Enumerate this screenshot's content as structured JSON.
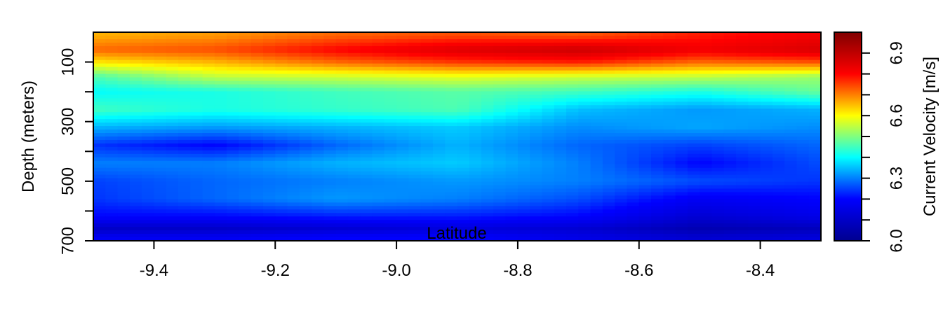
{
  "chart_data": {
    "type": "heatmap",
    "title": "",
    "xlabel": "Latitude",
    "ylabel": "Depth (meters)",
    "colorbar_label": "Current Velocity [m/s]",
    "x_ticks": [
      "-9.4",
      "-9.2",
      "-9.0",
      "-8.8",
      "-8.6",
      "-8.4"
    ],
    "x_tick_values": [
      -9.4,
      -9.2,
      -9.0,
      -8.8,
      -8.6,
      -8.4
    ],
    "xlim": [
      -9.5,
      -8.3
    ],
    "y_ticks": [
      "100",
      "300",
      "500",
      "700"
    ],
    "y_tick_values": [
      100,
      300,
      500,
      700
    ],
    "y_minor_tick_values": [
      200,
      400,
      600
    ],
    "ylim": [
      700,
      0
    ],
    "colorbar_ticks": [
      "6.0",
      "6.3",
      "6.6",
      "6.9"
    ],
    "colorbar_tick_values": [
      6.0,
      6.3,
      6.6,
      6.9
    ],
    "colorbar_minor_tick_values": [
      6.1,
      6.2,
      6.4,
      6.5,
      6.7,
      6.8
    ],
    "zlim": [
      6.0,
      7.0
    ],
    "colormap": [
      "#00008f",
      "#0000ff",
      "#00ffff",
      "#ffff00",
      "#ff0000",
      "#800000"
    ],
    "depths": [
      10,
      60,
      100,
      150,
      200,
      260,
      320,
      380,
      440,
      500,
      560,
      620,
      660,
      690
    ],
    "latitudes": [
      -9.5,
      -9.3,
      -9.1,
      -8.9,
      -8.7,
      -8.5,
      -8.3
    ],
    "values": [
      [
        6.66,
        6.68,
        6.72,
        6.74,
        6.73,
        6.78,
        6.82
      ],
      [
        6.72,
        6.74,
        6.8,
        6.85,
        6.88,
        6.82,
        6.86
      ],
      [
        6.62,
        6.66,
        6.72,
        6.76,
        6.78,
        6.72,
        6.74
      ],
      [
        6.46,
        6.55,
        6.56,
        6.58,
        6.56,
        6.55,
        6.52
      ],
      [
        6.4,
        6.42,
        6.45,
        6.47,
        6.45,
        6.42,
        6.48
      ],
      [
        6.45,
        6.42,
        6.44,
        6.46,
        6.35,
        6.32,
        6.34
      ],
      [
        6.34,
        6.32,
        6.34,
        6.36,
        6.31,
        6.33,
        6.31
      ],
      [
        6.24,
        6.2,
        6.28,
        6.34,
        6.28,
        6.25,
        6.28
      ],
      [
        6.3,
        6.3,
        6.34,
        6.36,
        6.3,
        6.2,
        6.26
      ],
      [
        6.25,
        6.28,
        6.3,
        6.32,
        6.3,
        6.26,
        6.24
      ],
      [
        6.24,
        6.28,
        6.32,
        6.3,
        6.26,
        6.18,
        6.2
      ],
      [
        6.2,
        6.2,
        6.22,
        6.22,
        6.2,
        6.12,
        6.16
      ],
      [
        6.1,
        6.1,
        6.12,
        6.14,
        6.12,
        6.06,
        6.08
      ],
      [
        6.18,
        6.18,
        6.2,
        6.2,
        6.16,
        6.12,
        6.14
      ]
    ]
  }
}
